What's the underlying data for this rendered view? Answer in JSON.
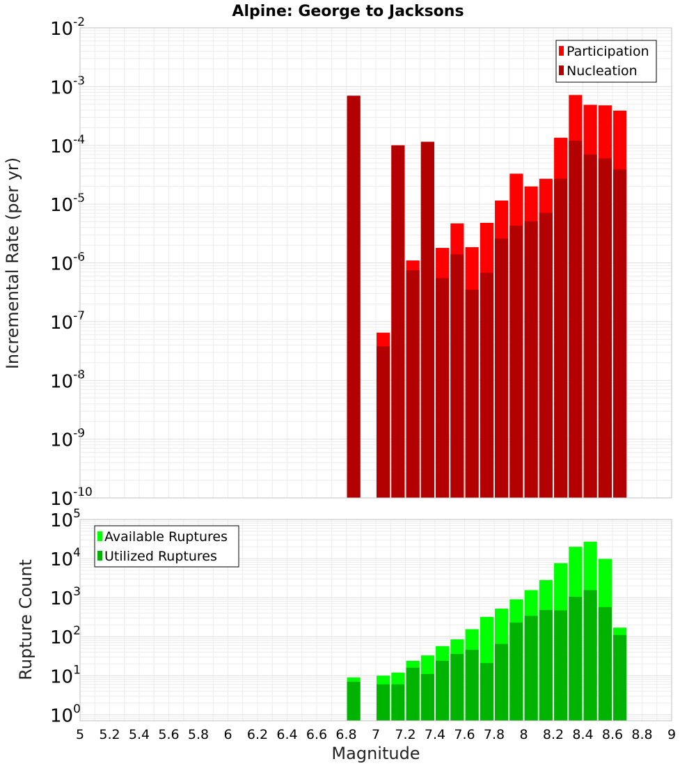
{
  "chart_data": [
    {
      "type": "bar",
      "title": "Alpine: George to Jacksons",
      "xlabel": "",
      "ylabel": "Incremental Rate (per yr)",
      "y_scale": "log",
      "ylim": [
        1e-10,
        0.01
      ],
      "xlim": [
        5,
        9
      ],
      "grid": true,
      "legend_position": "top-right",
      "series": [
        {
          "name": "Participation",
          "color": "#ff0000",
          "points": [
            {
              "x": 6.85,
              "y": 0.0007
            },
            {
              "x": 7.05,
              "y": 6.5e-08
            },
            {
              "x": 7.15,
              "y": 0.0001
            },
            {
              "x": 7.25,
              "y": 1.1e-06
            },
            {
              "x": 7.35,
              "y": 0.000115
            },
            {
              "x": 7.45,
              "y": 1.8e-06
            },
            {
              "x": 7.55,
              "y": 4.7e-06
            },
            {
              "x": 7.65,
              "y": 1.85e-06
            },
            {
              "x": 7.75,
              "y": 4.8e-06
            },
            {
              "x": 7.85,
              "y": 1.15e-05
            },
            {
              "x": 7.95,
              "y": 3.3e-05
            },
            {
              "x": 8.05,
              "y": 2e-05
            },
            {
              "x": 8.15,
              "y": 2.7e-05
            },
            {
              "x": 8.25,
              "y": 0.000135
            },
            {
              "x": 8.35,
              "y": 0.00072
            },
            {
              "x": 8.45,
              "y": 0.00049
            },
            {
              "x": 8.55,
              "y": 0.00048
            },
            {
              "x": 8.65,
              "y": 0.00039
            }
          ]
        },
        {
          "name": "Nucleation",
          "color": "#b30000",
          "points": [
            {
              "x": 6.85,
              "y": 0.0007
            },
            {
              "x": 7.05,
              "y": 3.8e-08
            },
            {
              "x": 7.15,
              "y": 0.0001
            },
            {
              "x": 7.25,
              "y": 7.5e-07
            },
            {
              "x": 7.35,
              "y": 0.000115
            },
            {
              "x": 7.45,
              "y": 5.5e-07
            },
            {
              "x": 7.55,
              "y": 1.4e-06
            },
            {
              "x": 7.65,
              "y": 3.5e-07
            },
            {
              "x": 7.75,
              "y": 6.8e-07
            },
            {
              "x": 7.85,
              "y": 2.6e-06
            },
            {
              "x": 7.95,
              "y": 4.3e-06
            },
            {
              "x": 8.05,
              "y": 5.1e-06
            },
            {
              "x": 8.15,
              "y": 7.1e-06
            },
            {
              "x": 8.25,
              "y": 2.7e-05
            },
            {
              "x": 8.35,
              "y": 0.00012
            },
            {
              "x": 8.45,
              "y": 7e-05
            },
            {
              "x": 8.55,
              "y": 6e-05
            },
            {
              "x": 8.65,
              "y": 3.9e-05
            }
          ]
        }
      ]
    },
    {
      "type": "bar",
      "title": "",
      "xlabel": "Magnitude",
      "ylabel": "Rupture Count",
      "y_scale": "log",
      "ylim": [
        0.7,
        100000.0
      ],
      "xlim": [
        5,
        9
      ],
      "x_ticks": [
        "5",
        "5.2",
        "5.4",
        "5.6",
        "5.8",
        "6",
        "6.2",
        "6.4",
        "6.6",
        "6.8",
        "7",
        "7.2",
        "7.4",
        "7.6",
        "7.8",
        "8",
        "8.2",
        "8.4",
        "8.6",
        "8.8",
        "9"
      ],
      "grid": true,
      "legend_position": "top-left",
      "series": [
        {
          "name": "Available Ruptures",
          "color": "#00ff00",
          "points": [
            {
              "x": 6.85,
              "y": 9
            },
            {
              "x": 7.05,
              "y": 10
            },
            {
              "x": 7.15,
              "y": 12
            },
            {
              "x": 7.25,
              "y": 24
            },
            {
              "x": 7.35,
              "y": 33
            },
            {
              "x": 7.45,
              "y": 57
            },
            {
              "x": 7.55,
              "y": 85
            },
            {
              "x": 7.65,
              "y": 155
            },
            {
              "x": 7.75,
              "y": 320
            },
            {
              "x": 7.85,
              "y": 520
            },
            {
              "x": 7.95,
              "y": 900
            },
            {
              "x": 8.05,
              "y": 1550
            },
            {
              "x": 8.15,
              "y": 2800
            },
            {
              "x": 8.25,
              "y": 7600
            },
            {
              "x": 8.35,
              "y": 20000
            },
            {
              "x": 8.45,
              "y": 27000
            },
            {
              "x": 8.55,
              "y": 9800
            },
            {
              "x": 8.65,
              "y": 170
            }
          ]
        },
        {
          "name": "Utilized Ruptures",
          "color": "#00b300",
          "points": [
            {
              "x": 6.85,
              "y": 7
            },
            {
              "x": 7.05,
              "y": 6
            },
            {
              "x": 7.15,
              "y": 6
            },
            {
              "x": 7.25,
              "y": 16
            },
            {
              "x": 7.35,
              "y": 11
            },
            {
              "x": 7.45,
              "y": 24
            },
            {
              "x": 7.55,
              "y": 36
            },
            {
              "x": 7.65,
              "y": 46
            },
            {
              "x": 7.75,
              "y": 21
            },
            {
              "x": 7.85,
              "y": 65
            },
            {
              "x": 7.95,
              "y": 230
            },
            {
              "x": 8.05,
              "y": 340
            },
            {
              "x": 8.15,
              "y": 480
            },
            {
              "x": 8.25,
              "y": 470
            },
            {
              "x": 8.35,
              "y": 1050
            },
            {
              "x": 8.45,
              "y": 1550
            },
            {
              "x": 8.55,
              "y": 570
            },
            {
              "x": 8.65,
              "y": 110
            }
          ]
        }
      ]
    }
  ]
}
